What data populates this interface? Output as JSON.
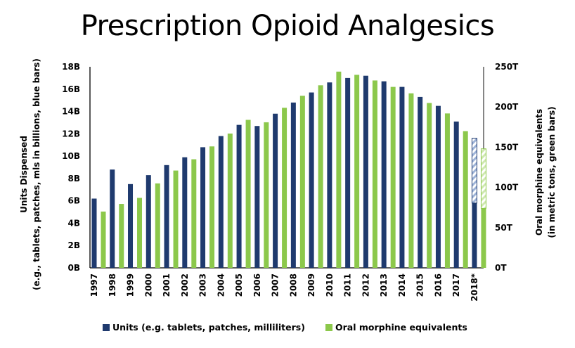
{
  "chart_data": {
    "type": "bar",
    "title": "Prescription Opioid Analgesics",
    "categories": [
      "1997",
      "1998",
      "1999",
      "2000",
      "2001",
      "2002",
      "2003",
      "2004",
      "2005",
      "2006",
      "2007",
      "2008",
      "2009",
      "2010",
      "2011",
      "2012",
      "2013",
      "2014",
      "2015",
      "2016",
      "2017",
      "2018*"
    ],
    "series": [
      {
        "name": "Units (e.g. tablets, patches, milliliters)",
        "axis": "left",
        "color": "#1f3a6e",
        "values": [
          6.2,
          8.8,
          7.5,
          8.3,
          9.2,
          9.9,
          10.8,
          11.8,
          12.8,
          12.7,
          13.8,
          14.8,
          15.7,
          16.6,
          17.0,
          17.2,
          16.7,
          16.2,
          15.3,
          14.5,
          13.1,
          11.6
        ],
        "partial_actual": {
          "category": "2018*",
          "value": 5.8,
          "projected_total": 11.6
        }
      },
      {
        "name": "Oral morphine equivalents",
        "axis": "right",
        "color": "#8cc84b",
        "values": [
          70,
          79.5,
          87,
          105,
          121,
          135,
          151,
          167,
          184,
          181,
          199,
          214,
          227,
          244,
          240,
          233,
          225,
          217,
          205,
          192,
          170,
          148
        ],
        "partial_actual": {
          "category": "2018*",
          "value": 74,
          "projected_total": 148
        }
      }
    ],
    "left_axis": {
      "label_line1": "Units Dispensed",
      "label_line2": "(e.g., tablets, patches, mls in billions,  blue bars)",
      "ylim": [
        0,
        18
      ],
      "ticks": [
        0,
        2,
        4,
        6,
        8,
        10,
        12,
        14,
        16,
        18
      ],
      "tick_labels": [
        "0B",
        "2B",
        "4B",
        "6B",
        "8B",
        "10B",
        "12B",
        "14B",
        "16B",
        "18B"
      ]
    },
    "right_axis": {
      "label_line1": "Oral morphine equivalents",
      "label_line2": "(in metric tons, green bars)",
      "ylim": [
        0,
        250
      ],
      "ticks": [
        0,
        50,
        100,
        150,
        200,
        250
      ],
      "tick_labels": [
        "0T",
        "50T",
        "100T",
        "150T",
        "200T",
        "250T"
      ]
    },
    "xlabel": "",
    "grid": false,
    "legend_position": "bottom"
  },
  "legend": {
    "units_label": "Units (e.g. tablets, patches, milliliters)",
    "ome_label": "Oral morphine equivalents"
  }
}
